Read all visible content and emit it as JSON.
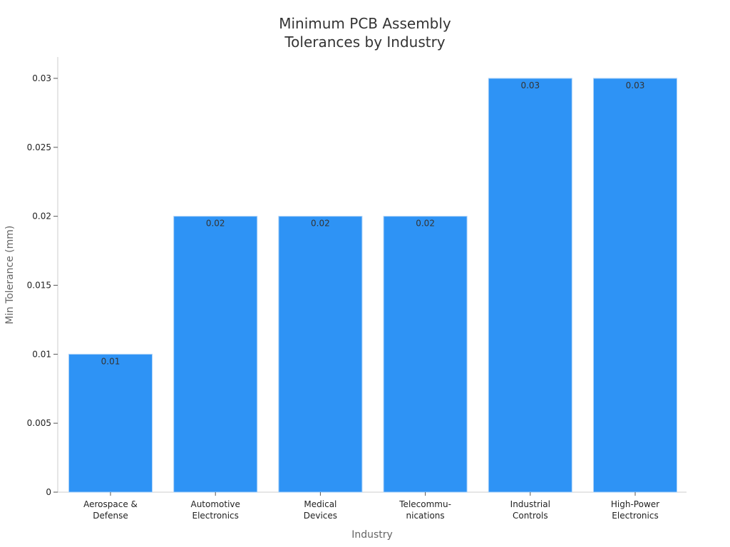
{
  "chart_data": {
    "type": "bar",
    "title_lines": [
      "Minimum PCB Assembly",
      "Tolerances by Industry"
    ],
    "xlabel": "Industry",
    "ylabel": "Min Tolerance (mm)",
    "categories": [
      [
        "Aerospace &",
        "Defense"
      ],
      [
        "Automotive",
        "Electronics"
      ],
      [
        "Medical",
        "Devices"
      ],
      [
        "Telecommu-",
        "nications"
      ],
      [
        "Industrial",
        "Controls"
      ],
      [
        "High-Power",
        "Electronics"
      ]
    ],
    "values": [
      0.01,
      0.02,
      0.02,
      0.02,
      0.03,
      0.03
    ],
    "value_labels": [
      "0.01",
      "0.02",
      "0.02",
      "0.02",
      "0.03",
      "0.03"
    ],
    "ylim": [
      0,
      0.03
    ],
    "yticks": [
      0,
      0.005,
      0.01,
      0.015,
      0.02,
      0.025,
      0.03
    ],
    "ytick_labels": [
      "0",
      "0.005",
      "0.01",
      "0.015",
      "0.02",
      "0.025",
      "0.03"
    ],
    "grid": false,
    "legend": "none",
    "colors": {
      "bar": "#2e93f5",
      "bar_edge": "#a9d0f7",
      "axis": "#cccccc"
    }
  }
}
